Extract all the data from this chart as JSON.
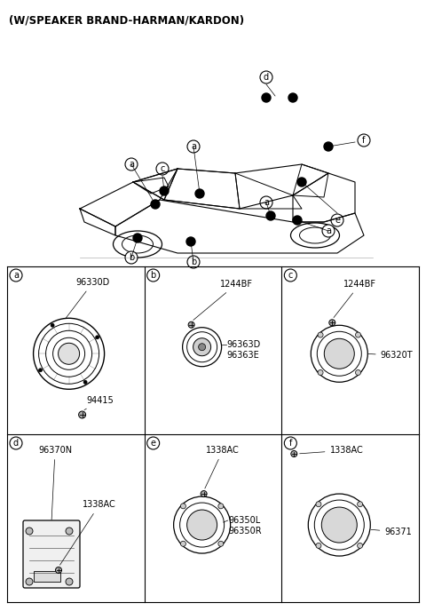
{
  "title": "(W/SPEAKER BRAND-HARMAN/KARDON)",
  "bg_color": "#ffffff",
  "grid_color": "#000000",
  "text_color": "#000000",
  "title_fontsize": 8.5,
  "label_fontsize": 7.5,
  "parts_label_fontsize": 7.0,
  "cells": [
    {
      "label": "a",
      "col": 0,
      "row": 0
    },
    {
      "label": "b",
      "col": 1,
      "row": 0
    },
    {
      "label": "c",
      "col": 2,
      "row": 0
    },
    {
      "label": "d",
      "col": 0,
      "row": 1
    },
    {
      "label": "e",
      "col": 1,
      "row": 1
    },
    {
      "label": "f",
      "col": 2,
      "row": 1
    }
  ],
  "cell_a_parts": [
    "96330D",
    "94415"
  ],
  "cell_b_parts": [
    "1244BF",
    "96363D",
    "96363E"
  ],
  "cell_c_parts": [
    "1244BF",
    "96320T"
  ],
  "cell_d_parts": [
    "96370N",
    "1338AC"
  ],
  "cell_e_parts": [
    "1338AC",
    "96350L",
    "96350R"
  ],
  "cell_f_parts": [
    "1338AC",
    "96371"
  ]
}
